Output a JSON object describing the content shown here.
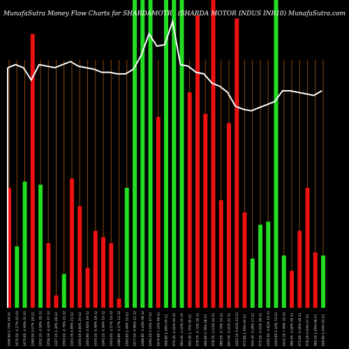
{
  "chart_data": {
    "type": "bar",
    "title_left": "MunafaSutra  Money Flow  Charts for SHARDAMOTR",
    "title_right": "(SHARDA MOTOR INDUS INR10) MunafaSutra.com",
    "colors": {
      "background": "#000000",
      "up": "#22dd22",
      "down": "#ee1111",
      "grid": "#8b4a10",
      "line": "#ffffff",
      "text": "#ffffff"
    },
    "ylim": [
      0,
      100
    ],
    "grid": true,
    "categories": [
      "1090.60 0.75% 04-01",
      "1070.10 -0.27% 02-01",
      "1075.85 -0.99% 01-01",
      "1084.55 3.07% 29-12",
      "1052.20 -0.58% 28-12",
      "1058.30 -4.42% 27-12",
      "1107.15 1.30% 26-12",
      "1093.00 -0.76% 22-12",
      "1101.35 4.89% 21-12",
      "1050.00 4.60% 20-12",
      "1003.80 -2.84% 19-12",
      "1033.15 -0.96% 18-12",
      "1043.15 -0.94% 15-12",
      "1053.05 -2.57% 14-12",
      "1080.85 -1.17% 13-12",
      "1093.65 1.49% 12-12",
      "1077.55 -0.86% 11-12",
      "1086.85 -0.43% 08-12",
      "1091.55 1.93% 07-12",
      "1070.85 7.22% 06-12",
      "998.80 1.99% 05-12",
      "979.30 -0.42% 04-12",
      "983.45 -1.20% 01-12",
      "995.35 1.70% 30-11",
      "978.70 -0.72% 29-11",
      "985.80 0.76% 28-11",
      "978.35 -1.13% 24-11",
      "989.55 -0.74% 23-11",
      "997.00 -0.51% 22-11",
      "1002.10 3.01% 21-11",
      "972.85 1.95% 20-11",
      "954.30 -2.18% 17-11",
      "975.55 -3.02% 16-11",
      "1005.90 -3.62% 15-11",
      "1043.65 1.10% 13-11",
      "1032.35 7.49% 10-11",
      "960.40 -1.56% 09-11",
      "975.65 -0.26% 08-11",
      "978.20 0.93% 07-11",
      "969.20 1.09% 06-11",
      "958.80 1.04% 03-11"
    ],
    "series": [
      {
        "color": "down",
        "values": [
          39,
          20,
          41,
          89,
          40,
          21,
          4,
          11,
          42,
          33,
          13,
          25,
          23,
          21,
          3,
          39,
          100,
          100,
          100,
          62,
          100,
          100,
          100,
          70,
          95,
          63,
          100,
          35,
          60,
          94,
          31,
          16,
          27,
          28,
          100,
          17,
          12,
          25,
          39,
          18,
          17
        ]
      },
      {
        "name": "flow-line",
        "values": [
          78,
          79,
          78,
          74,
          79,
          78.5,
          78,
          79,
          80,
          78.5,
          78,
          77.5,
          76.5,
          76.5,
          76,
          76,
          77.5,
          82,
          89,
          85,
          85.5,
          93,
          79,
          78.5,
          76.5,
          76,
          73,
          72,
          70,
          65.5,
          64.5,
          64,
          65,
          66,
          67,
          70.5,
          70.5,
          70,
          69.5,
          69,
          70.5
        ]
      }
    ],
    "bar_colors": [
      "down",
      "up",
      "up",
      "down",
      "up",
      "down",
      "down",
      "up",
      "down",
      "down",
      "down",
      "down",
      "down",
      "down",
      "down",
      "up",
      "up",
      "up",
      "up",
      "down",
      "up",
      "up",
      "up",
      "down",
      "down",
      "down",
      "down",
      "down",
      "down",
      "down",
      "down",
      "up",
      "up",
      "up",
      "up",
      "up",
      "down",
      "down",
      "down",
      "down",
      "up"
    ]
  }
}
